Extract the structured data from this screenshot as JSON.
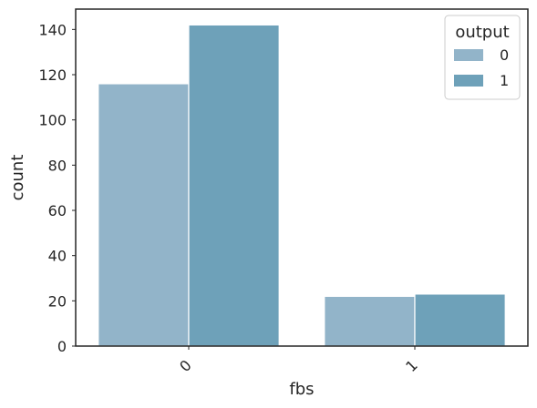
{
  "chart_data": {
    "type": "bar",
    "title": "",
    "xlabel": "fbs",
    "ylabel": "count",
    "categories": [
      "0",
      "1"
    ],
    "series": [
      {
        "name": "0",
        "values": [
          116,
          22
        ],
        "color": "#92b4c9"
      },
      {
        "name": "1",
        "values": [
          142,
          23
        ],
        "color": "#6ea1b9"
      }
    ],
    "ylim": [
      0,
      149
    ],
    "yticks": [
      0,
      20,
      40,
      60,
      80,
      100,
      120,
      140
    ],
    "grid": false,
    "legend": {
      "title": "output",
      "position": "top-right"
    },
    "xtick_rotation": 45
  }
}
